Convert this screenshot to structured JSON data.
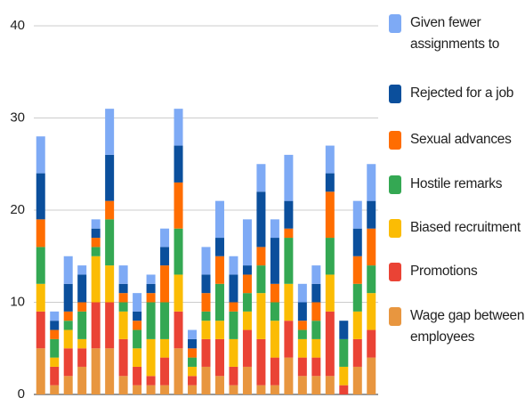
{
  "chart_data": {
    "type": "stacked_bar",
    "categories": [
      null,
      null,
      null,
      null,
      null,
      null,
      null,
      null,
      null,
      null,
      null,
      null,
      null,
      null,
      null,
      null,
      null,
      null,
      null,
      null,
      null,
      null,
      null,
      null,
      null
    ],
    "series": [
      {
        "name": "Wage gap between employees",
        "color": "#e8963f",
        "values": [
          5,
          1,
          2,
          3,
          5,
          5,
          2,
          1,
          1,
          1,
          5,
          1,
          3,
          2,
          1,
          3,
          1,
          1,
          4,
          2,
          2,
          2,
          0,
          3,
          4
        ]
      },
      {
        "name": "Promotions",
        "color": "#ea4335",
        "values": [
          4,
          2,
          3,
          2,
          5,
          5,
          4,
          2,
          1,
          3,
          4,
          1,
          3,
          4,
          2,
          4,
          5,
          3,
          4,
          2,
          2,
          7,
          1,
          3,
          3
        ]
      },
      {
        "name": "Biased recruitment",
        "color": "#fbbc04",
        "values": [
          3,
          1,
          2,
          1,
          5,
          4,
          3,
          2,
          4,
          2,
          4,
          1,
          2,
          2,
          3,
          2,
          5,
          4,
          4,
          2,
          2,
          4,
          2,
          3,
          4
        ]
      },
      {
        "name": "Hostile remarks",
        "color": "#34a853",
        "values": [
          4,
          2,
          1,
          3,
          1,
          5,
          1,
          2,
          4,
          4,
          5,
          1,
          1,
          4,
          3,
          2,
          3,
          2,
          5,
          1,
          2,
          4,
          3,
          3,
          3
        ]
      },
      {
        "name": "Sexual advances",
        "color": "#ff6d01",
        "values": [
          3,
          1,
          1,
          1,
          1,
          2,
          1,
          1,
          1,
          4,
          5,
          1,
          2,
          3,
          1,
          2,
          2,
          2,
          1,
          1,
          2,
          5,
          0,
          3,
          4
        ]
      },
      {
        "name": "Rejected for a job",
        "color": "#0b4f9c",
        "values": [
          5,
          1,
          3,
          3,
          1,
          5,
          1,
          1,
          1,
          2,
          4,
          1,
          2,
          2,
          3,
          1,
          6,
          5,
          3,
          2,
          2,
          2,
          2,
          3,
          3
        ]
      },
      {
        "name": "Given fewer assignments to",
        "color": "#7eaaf5",
        "values": [
          4,
          1,
          3,
          1,
          1,
          5,
          2,
          2,
          1,
          2,
          4,
          1,
          3,
          4,
          2,
          5,
          3,
          2,
          5,
          2,
          2,
          3,
          0,
          3,
          4
        ]
      }
    ],
    "ylim": [
      0,
      40
    ],
    "yticks": [
      0,
      10,
      20,
      30,
      40
    ],
    "grid": true,
    "legend": "right"
  }
}
